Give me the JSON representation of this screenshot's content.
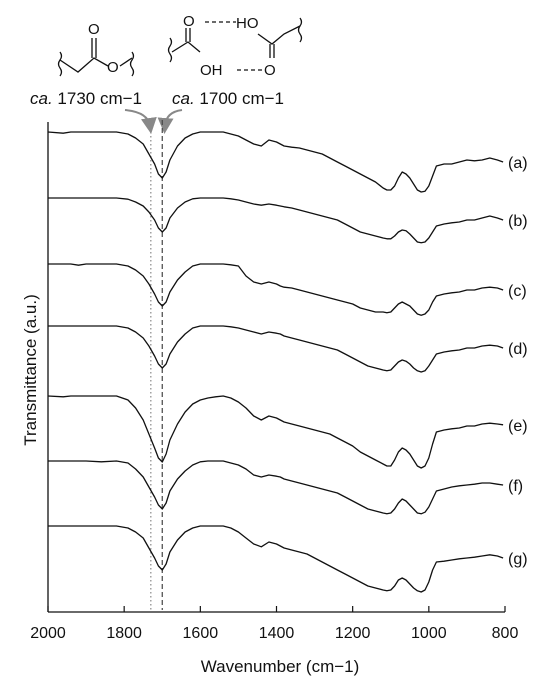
{
  "chart_data": {
    "type": "line",
    "xlabel": "Wavenumber (cm−1)",
    "ylabel": "Transmittance (a.u.)",
    "xlim": [
      2000,
      800
    ],
    "x_reversed": true,
    "x_ticks": [
      2000,
      1800,
      1600,
      1400,
      1200,
      1000,
      800
    ],
    "y_ticks": [],
    "grid": false,
    "reference_lines": [
      {
        "x": 1730,
        "style": "dotted",
        "color": "#888888"
      },
      {
        "x": 1700,
        "style": "dashed",
        "color": "#444444"
      }
    ],
    "annotations": [
      {
        "italic": "ca.",
        "text": " 1730 cm−1",
        "target_x": 1730
      },
      {
        "italic": "ca.",
        "text": " 1700 cm−1",
        "target_x": 1700
      }
    ],
    "structure_labels": {
      "ester": [
        "O",
        "O"
      ],
      "acid_dimer": [
        "O",
        "HO",
        "OH",
        "O"
      ]
    },
    "series_shape_x": [
      2000,
      1960,
      1940,
      1920,
      1900,
      1860,
      1820,
      1790,
      1770,
      1750,
      1735,
      1720,
      1710,
      1700,
      1690,
      1680,
      1660,
      1640,
      1620,
      1600,
      1580,
      1560,
      1540,
      1520,
      1500,
      1480,
      1460,
      1440,
      1420,
      1400,
      1390,
      1380,
      1360,
      1340,
      1320,
      1300,
      1280,
      1260,
      1240,
      1220,
      1200,
      1180,
      1160,
      1140,
      1120,
      1110,
      1100,
      1090,
      1080,
      1070,
      1060,
      1050,
      1040,
      1030,
      1020,
      1010,
      1000,
      990,
      980,
      960,
      940,
      920,
      900,
      880,
      860,
      840,
      820,
      805
    ],
    "series": [
      {
        "label": "(a)",
        "values": [
          0.0,
          -0.03,
          0.0,
          0.0,
          0.0,
          0.0,
          0.0,
          -0.05,
          -0.15,
          -0.3,
          -0.55,
          -0.8,
          -1.05,
          -1.15,
          -1.0,
          -0.7,
          -0.35,
          -0.15,
          -0.05,
          0.0,
          0.0,
          0.0,
          0.0,
          -0.05,
          -0.1,
          -0.2,
          -0.3,
          -0.35,
          -0.2,
          -0.25,
          -0.3,
          -0.35,
          -0.38,
          -0.4,
          -0.45,
          -0.5,
          -0.55,
          -0.65,
          -0.75,
          -0.85,
          -0.95,
          -1.05,
          -1.15,
          -1.25,
          -1.4,
          -1.45,
          -1.45,
          -1.35,
          -1.15,
          -1.0,
          -1.05,
          -1.15,
          -1.3,
          -1.45,
          -1.5,
          -1.48,
          -1.35,
          -1.1,
          -0.85,
          -0.8,
          -0.8,
          -0.75,
          -0.7,
          -0.72,
          -0.7,
          -0.65,
          -0.7,
          -0.75
        ]
      },
      {
        "label": "(b)",
        "values": [
          0.0,
          0.0,
          0.0,
          0.0,
          0.0,
          0.0,
          0.0,
          -0.03,
          -0.1,
          -0.2,
          -0.35,
          -0.55,
          -0.75,
          -0.85,
          -0.75,
          -0.5,
          -0.25,
          -0.1,
          -0.02,
          0.0,
          0.0,
          0.0,
          0.0,
          -0.02,
          -0.05,
          -0.1,
          -0.15,
          -0.18,
          -0.15,
          -0.18,
          -0.2,
          -0.22,
          -0.25,
          -0.3,
          -0.35,
          -0.4,
          -0.45,
          -0.5,
          -0.55,
          -0.65,
          -0.75,
          -0.85,
          -0.9,
          -0.95,
          -1.0,
          -1.02,
          -1.02,
          -0.95,
          -0.85,
          -0.8,
          -0.82,
          -0.9,
          -1.0,
          -1.1,
          -1.12,
          -1.1,
          -1.0,
          -0.85,
          -0.7,
          -0.65,
          -0.62,
          -0.6,
          -0.55,
          -0.55,
          -0.5,
          -0.45,
          -0.5,
          -0.55
        ]
      },
      {
        "label": "(c)",
        "values": [
          0.0,
          0.0,
          0.0,
          -0.03,
          0.0,
          0.0,
          0.0,
          -0.05,
          -0.15,
          -0.3,
          -0.5,
          -0.75,
          -0.95,
          -1.05,
          -0.95,
          -0.7,
          -0.4,
          -0.2,
          -0.05,
          0.0,
          0.0,
          0.0,
          0.0,
          -0.02,
          -0.05,
          -0.3,
          -0.45,
          -0.5,
          -0.45,
          -0.5,
          -0.55,
          -0.58,
          -0.6,
          -0.65,
          -0.7,
          -0.75,
          -0.8,
          -0.85,
          -0.9,
          -0.95,
          -1.0,
          -1.1,
          -1.15,
          -1.2,
          -1.2,
          -1.22,
          -1.2,
          -1.1,
          -1.0,
          -0.95,
          -1.0,
          -1.05,
          -1.15,
          -1.25,
          -1.28,
          -1.25,
          -1.15,
          -0.95,
          -0.8,
          -0.75,
          -0.72,
          -0.7,
          -0.65,
          -0.65,
          -0.6,
          -0.58,
          -0.6,
          -0.65
        ]
      },
      {
        "label": "(d)",
        "values": [
          0.0,
          0.0,
          0.0,
          0.0,
          0.0,
          0.0,
          0.0,
          -0.05,
          -0.15,
          -0.3,
          -0.5,
          -0.75,
          -0.95,
          -1.05,
          -0.95,
          -0.7,
          -0.4,
          -0.2,
          -0.05,
          0.0,
          0.0,
          0.0,
          0.0,
          -0.02,
          -0.05,
          -0.1,
          -0.15,
          -0.2,
          -0.15,
          -0.18,
          -0.2,
          -0.25,
          -0.3,
          -0.35,
          -0.4,
          -0.45,
          -0.5,
          -0.55,
          -0.6,
          -0.7,
          -0.8,
          -0.9,
          -1.0,
          -1.05,
          -1.1,
          -1.12,
          -1.1,
          -1.0,
          -0.9,
          -0.85,
          -0.88,
          -0.95,
          -1.05,
          -1.12,
          -1.15,
          -1.12,
          -1.0,
          -0.85,
          -0.7,
          -0.65,
          -0.62,
          -0.6,
          -0.55,
          -0.55,
          -0.5,
          -0.48,
          -0.5,
          -0.55
        ]
      },
      {
        "label": "(e)",
        "values": [
          0.0,
          -0.02,
          0.0,
          0.0,
          0.0,
          0.0,
          0.0,
          -0.1,
          -0.3,
          -0.6,
          -0.95,
          -1.3,
          -1.55,
          -1.65,
          -1.45,
          -1.1,
          -0.7,
          -0.4,
          -0.2,
          -0.1,
          -0.05,
          -0.02,
          0.0,
          -0.05,
          -0.15,
          -0.3,
          -0.5,
          -0.6,
          -0.5,
          -0.55,
          -0.6,
          -0.65,
          -0.7,
          -0.75,
          -0.8,
          -0.85,
          -0.9,
          -0.95,
          -1.05,
          -1.15,
          -1.25,
          -1.4,
          -1.5,
          -1.6,
          -1.7,
          -1.75,
          -1.75,
          -1.6,
          -1.4,
          -1.3,
          -1.35,
          -1.45,
          -1.6,
          -1.75,
          -1.8,
          -1.75,
          -1.55,
          -1.2,
          -0.9,
          -0.85,
          -0.82,
          -0.8,
          -0.75,
          -0.75,
          -0.7,
          -0.68,
          -0.7,
          -0.72
        ]
      },
      {
        "label": "(f)",
        "values": [
          0.0,
          0.0,
          0.0,
          0.0,
          0.0,
          -0.02,
          0.0,
          -0.05,
          -0.2,
          -0.4,
          -0.65,
          -0.9,
          -1.1,
          -1.2,
          -1.05,
          -0.75,
          -0.45,
          -0.25,
          -0.1,
          -0.02,
          0.0,
          0.0,
          0.0,
          -0.05,
          -0.1,
          -0.2,
          -0.35,
          -0.4,
          -0.35,
          -0.38,
          -0.4,
          -0.45,
          -0.5,
          -0.55,
          -0.6,
          -0.65,
          -0.7,
          -0.75,
          -0.8,
          -0.9,
          -1.0,
          -1.1,
          -1.2,
          -1.25,
          -1.3,
          -1.32,
          -1.3,
          -1.2,
          -1.05,
          -0.95,
          -1.0,
          -1.1,
          -1.2,
          -1.3,
          -1.32,
          -1.28,
          -1.15,
          -0.95,
          -0.75,
          -0.7,
          -0.65,
          -0.62,
          -0.6,
          -0.58,
          -0.55,
          -0.55,
          -0.58,
          -0.6
        ]
      },
      {
        "label": "(g)",
        "values": [
          0.0,
          0.0,
          0.0,
          0.0,
          0.0,
          0.0,
          0.0,
          -0.05,
          -0.15,
          -0.3,
          -0.55,
          -0.8,
          -1.0,
          -1.1,
          -0.95,
          -0.65,
          -0.35,
          -0.15,
          -0.05,
          0.0,
          0.0,
          0.0,
          0.0,
          -0.05,
          -0.15,
          -0.3,
          -0.45,
          -0.52,
          -0.4,
          -0.45,
          -0.5,
          -0.55,
          -0.6,
          -0.65,
          -0.7,
          -0.8,
          -0.9,
          -1.0,
          -1.1,
          -1.2,
          -1.3,
          -1.4,
          -1.5,
          -1.55,
          -1.6,
          -1.62,
          -1.6,
          -1.5,
          -1.35,
          -1.3,
          -1.35,
          -1.45,
          -1.55,
          -1.62,
          -1.65,
          -1.6,
          -1.4,
          -1.1,
          -0.9,
          -0.88,
          -0.85,
          -0.82,
          -0.8,
          -0.78,
          -0.75,
          -0.72,
          -0.75,
          -0.8
        ]
      }
    ]
  }
}
